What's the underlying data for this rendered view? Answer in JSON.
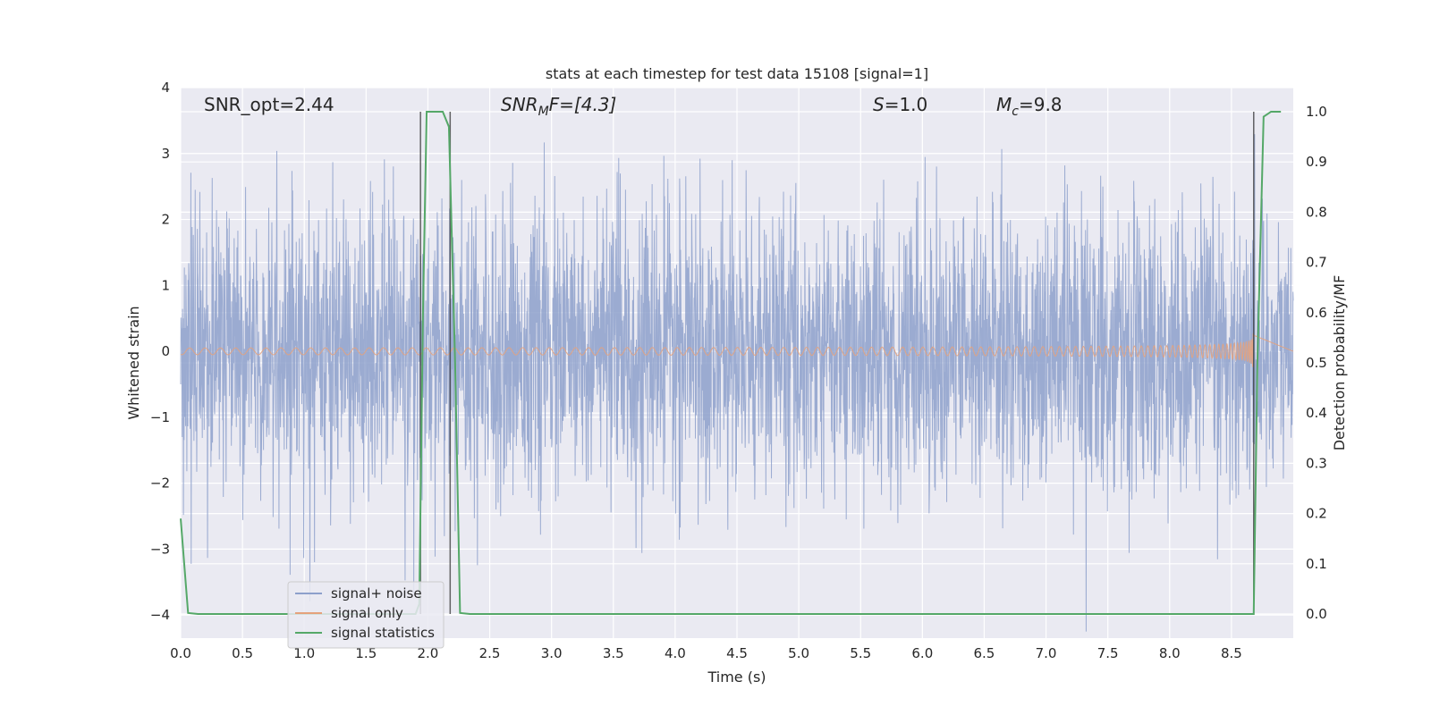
{
  "chart_data": {
    "type": "line",
    "title": "stats at each timestep for test data 15108 [signal=1]",
    "xlabel": "Time (s)",
    "ylabel_left": "Whitened strain",
    "ylabel_right": "Detection probability/MF",
    "xlim": [
      0.0,
      9.0
    ],
    "ylim_left": [
      -4.35,
      4.0
    ],
    "ylim_right": [
      -0.048,
      1.048
    ],
    "x_ticks": [
      "0.0",
      "0.5",
      "1.0",
      "1.5",
      "2.0",
      "2.5",
      "3.0",
      "3.5",
      "4.0",
      "4.5",
      "5.0",
      "5.5",
      "6.0",
      "6.5",
      "7.0",
      "7.5",
      "8.0",
      "8.5"
    ],
    "y_ticks_left": [
      "4",
      "3",
      "2",
      "1",
      "0",
      "−1",
      "−2",
      "−3",
      "−4"
    ],
    "y_ticks_right": [
      "1.0",
      "0.9",
      "0.8",
      "0.7",
      "0.6",
      "0.5",
      "0.4",
      "0.3",
      "0.2",
      "0.1",
      "0.0"
    ],
    "grid": true,
    "legend_position": "lower-left",
    "annotations": {
      "snr_opt": "SNR_opt=2.44",
      "snr_mf_main": "SNR",
      "snr_mf_sub": "M",
      "snr_mf_rest": "F=[4.3]",
      "s_main": "S",
      "s_rest": "=1.0",
      "mc_main": "M",
      "mc_sub": "c",
      "mc_rest": "=9.8"
    },
    "series": [
      {
        "name": "signal+ noise",
        "color": "#8da0cb",
        "description_level": "noise band approx ±2 whitened strain with spikes to ±4"
      },
      {
        "name": "signal only",
        "color": "#e5a27c",
        "chirp_end_time": 8.68,
        "max_amplitude": 0.33
      },
      {
        "name": "signal statistics",
        "color": "#55a868",
        "x": [
          0.0,
          0.06,
          0.14,
          1.9,
          1.93,
          1.96,
          1.99,
          2.04,
          2.12,
          2.17,
          2.22,
          2.26,
          2.34,
          8.68,
          8.71,
          8.76,
          8.82,
          8.9
        ],
        "y": [
          0.19,
          0.002,
          0.0,
          0.0,
          0.02,
          0.6,
          1.0,
          1.0,
          1.0,
          0.97,
          0.5,
          0.002,
          0.0,
          0.0,
          0.5,
          0.99,
          1.0,
          1.0
        ]
      }
    ],
    "vertical_markers": [
      1.94,
      2.18,
      8.68
    ]
  },
  "legend": {
    "items": [
      {
        "label": "signal+ noise",
        "color": "#8da0cb"
      },
      {
        "label": "signal only",
        "color": "#e5a27c"
      },
      {
        "label": "signal statistics",
        "color": "#55a868"
      }
    ]
  }
}
